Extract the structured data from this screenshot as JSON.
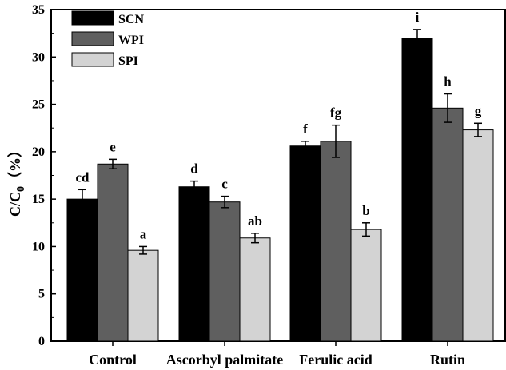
{
  "chart_data": {
    "type": "bar",
    "title": "",
    "xlabel": "",
    "ylabel": "C/C0（%）",
    "ylabel_main": "C/C",
    "ylabel_sub": "0",
    "ylabel_unit": "（%）",
    "ylim": [
      0,
      35
    ],
    "yticks": [
      0,
      5,
      10,
      15,
      20,
      25,
      30,
      35
    ],
    "grid": false,
    "legend_position": "top-left",
    "categories": [
      "Control",
      "Ascorbyl palmitate",
      "Ferulic acid",
      "Rutin"
    ],
    "series": [
      {
        "name": "SCN",
        "color": "#000000",
        "values": [
          15.0,
          16.3,
          20.6,
          32.0
        ],
        "errors": [
          1.0,
          0.6,
          0.5,
          0.9
        ],
        "labels": [
          "cd",
          "d",
          "f",
          "i"
        ]
      },
      {
        "name": "WPI",
        "color": "#5f5f5f",
        "values": [
          18.7,
          14.7,
          21.1,
          24.6
        ],
        "errors": [
          0.5,
          0.6,
          1.7,
          1.5
        ],
        "labels": [
          "e",
          "c",
          "fg",
          "h"
        ]
      },
      {
        "name": "SPI",
        "color": "#d3d3d3",
        "values": [
          9.6,
          10.9,
          11.8,
          22.3
        ],
        "errors": [
          0.4,
          0.5,
          0.7,
          0.7
        ],
        "labels": [
          "a",
          "ab",
          "b",
          "g"
        ]
      }
    ]
  }
}
